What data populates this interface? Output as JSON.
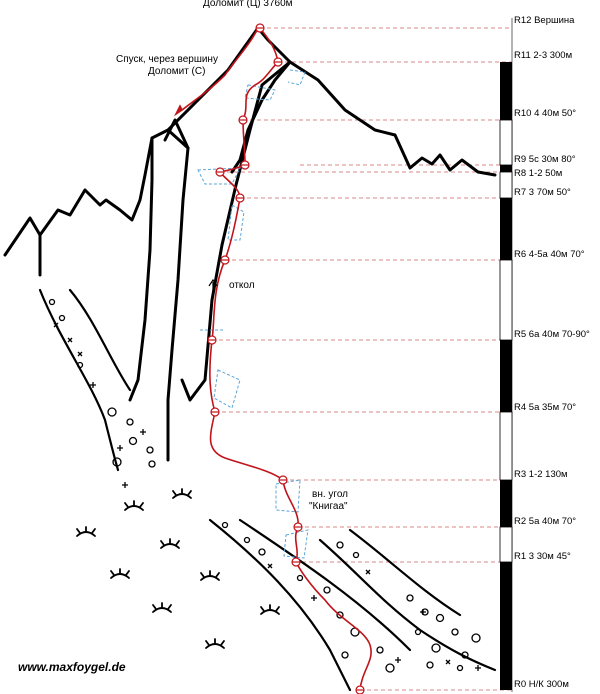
{
  "summit_title": "Доломит (Ц) 3760м",
  "descent_label_1": "Спуск, через вершину",
  "descent_label_2": "Доломит (С)",
  "otkol_label": "откол",
  "inner_corner_1": "вн. угол",
  "inner_corner_2": "\"Книгаа\"",
  "website": "www.maxfoygel.de",
  "pitches": [
    {
      "id": "R12",
      "text": "Вершина"
    },
    {
      "id": "R11",
      "text": "2-3 300м"
    },
    {
      "id": "R10",
      "text": "4 40м 50°"
    },
    {
      "id": "R9",
      "text": "5c 30м 80°"
    },
    {
      "id": "R8",
      "text": "1-2 50м"
    },
    {
      "id": "R7",
      "text": "3 70м 50°"
    },
    {
      "id": "R6",
      "text": "4-5a 40м 70°"
    },
    {
      "id": "R5",
      "text": "6a 40м 70-90°"
    },
    {
      "id": "R4",
      "text": "5a 35м 70°"
    },
    {
      "id": "R3",
      "text": "1-2 130м"
    },
    {
      "id": "R2",
      "text": "5a 40м 70°"
    },
    {
      "id": "R1",
      "text": "3 30м 45°"
    },
    {
      "id": "R0",
      "text": "Н/К 300м"
    }
  ],
  "colors": {
    "route": "#c0141b",
    "water": "#5aa6d8",
    "guide": "#d06060",
    "rock": "#000000"
  }
}
